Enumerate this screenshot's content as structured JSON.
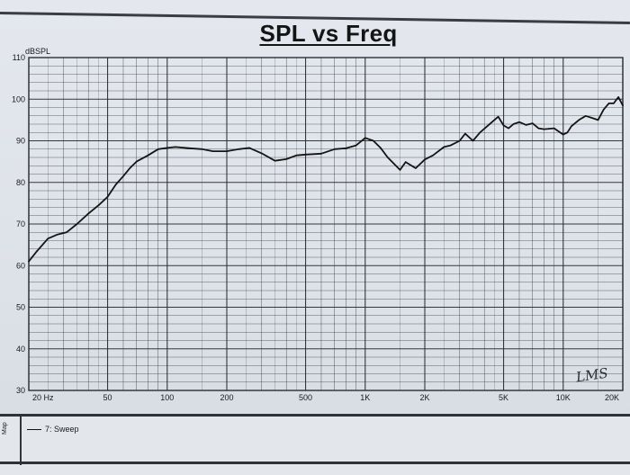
{
  "chart_data": {
    "type": "line",
    "title": "SPL vs Freq",
    "ylabel": "dBSPL",
    "xlabel": "",
    "x_scale": "log",
    "xlim": [
      20,
      20000
    ],
    "ylim": [
      30,
      110
    ],
    "grid": true,
    "y_ticks": [
      30,
      40,
      50,
      60,
      70,
      80,
      90,
      100,
      110
    ],
    "y_tick_labels": [
      "30",
      "40",
      "50",
      "60",
      "70",
      "80",
      "90",
      "100",
      "110"
    ],
    "x_ticks": [
      20,
      50,
      100,
      200,
      500,
      1000,
      2000,
      5000,
      10000,
      20000
    ],
    "x_tick_labels": [
      "20 Hz",
      "50",
      "100",
      "200",
      "500",
      "1K",
      "2K",
      "5K",
      "10K",
      "20K"
    ],
    "legend_position": "bottom-left",
    "series": [
      {
        "name": "7: Sweep",
        "color": "#141414",
        "x": [
          20,
          22,
          25,
          28,
          31,
          35,
          40,
          45,
          50,
          55,
          60,
          65,
          70,
          80,
          90,
          100,
          110,
          130,
          150,
          170,
          200,
          230,
          260,
          300,
          350,
          400,
          450,
          500,
          600,
          700,
          800,
          900,
          1000,
          1100,
          1200,
          1300,
          1500,
          1600,
          1800,
          2000,
          2200,
          2500,
          2700,
          3000,
          3200,
          3500,
          3800,
          4200,
          4700,
          5000,
          5300,
          5600,
          6000,
          6500,
          7000,
          7500,
          8000,
          9000,
          10000,
          10500,
          11000,
          12000,
          13000,
          14000,
          15000,
          16000,
          17000,
          18000,
          19000,
          20000
        ],
        "values": [
          61,
          63.5,
          66.5,
          67.5,
          68,
          70,
          72.5,
          74.5,
          76.5,
          79.5,
          81.5,
          83.5,
          85,
          86.5,
          88,
          88.3,
          88.5,
          88.2,
          88,
          87.5,
          87.5,
          88,
          88.3,
          87,
          85.2,
          85.6,
          86.5,
          86.7,
          86.9,
          88,
          88.2,
          88.9,
          90.7,
          90,
          88.2,
          86,
          83,
          84.9,
          83.4,
          85.5,
          86.5,
          88.5,
          88.9,
          90,
          91.7,
          90,
          92,
          93.8,
          95.8,
          93.7,
          93,
          94,
          94.5,
          93.8,
          94.2,
          93,
          92.8,
          93,
          91.5,
          92,
          93.5,
          95,
          96,
          95.5,
          95,
          97.5,
          99,
          99,
          100.5,
          98.5
        ]
      }
    ]
  },
  "legend": {
    "map_label": "Map",
    "entry": "7: Sweep"
  },
  "signature": "LMS",
  "colors": {
    "line": "#141414",
    "grid": "#2b2e33",
    "paper": "#e2e6ec"
  }
}
